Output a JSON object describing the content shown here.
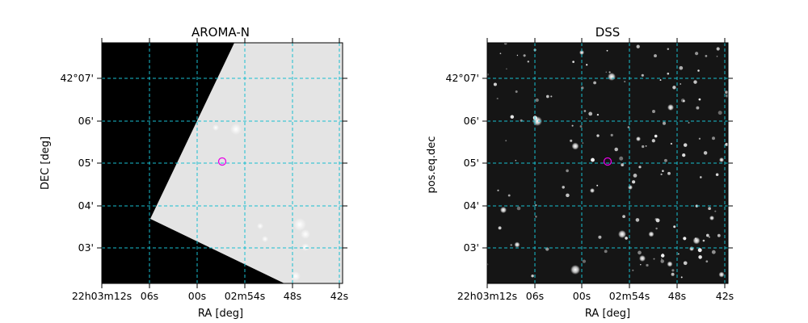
{
  "panels": [
    {
      "title": "AROMA-N",
      "xlabel": "RA [deg]",
      "ylabel": "DEC [deg]",
      "x_ticks": [
        "22h03m12s",
        "06s",
        "00s",
        "02m54s",
        "48s",
        "42s"
      ],
      "y_ticks": [
        "42°07'",
        "06'",
        "05'",
        "04'",
        "03'"
      ],
      "image_kind": "partial-coverage-grayscale"
    },
    {
      "title": "DSS",
      "xlabel": "RA [deg]",
      "ylabel": "pos.eq.dec",
      "x_ticks": [
        "22h03m12s",
        "06s",
        "00s",
        "02m54s",
        "48s",
        "42s"
      ],
      "y_ticks": [
        "42°07'",
        "06'",
        "05'",
        "04'",
        "03'"
      ],
      "image_kind": "star-field"
    }
  ],
  "colors": {
    "grid": "#17becf",
    "marker": "#e600e6"
  }
}
